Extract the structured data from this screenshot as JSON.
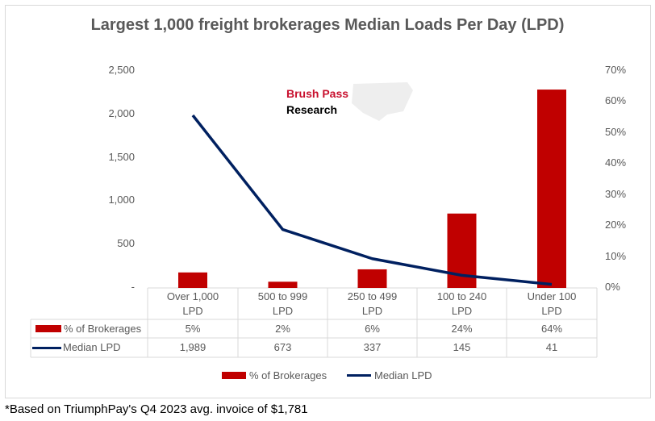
{
  "chart_data": {
    "type": "bar+line",
    "title": "Largest 1,000 freight brokerages Median Loads Per Day (LPD)",
    "categories": [
      "Over 1,000 LPD",
      "500 to 999 LPD",
      "250 to 499 LPD",
      "100 to 240 LPD",
      "Under 100 LPD"
    ],
    "category_lines": [
      [
        "Over 1,000",
        "LPD"
      ],
      [
        "500 to 999",
        "LPD"
      ],
      [
        "250 to 499",
        "LPD"
      ],
      [
        "100 to 240",
        "LPD"
      ],
      [
        "Under 100",
        "LPD"
      ]
    ],
    "series": [
      {
        "name": "% of Brokerages",
        "type": "bar",
        "axis": "right",
        "values": [
          5,
          2,
          6,
          24,
          64
        ],
        "labels": [
          "5%",
          "2%",
          "6%",
          "24%",
          "64%"
        ],
        "color": "#c00000"
      },
      {
        "name": "Median LPD",
        "type": "line",
        "axis": "left",
        "values": [
          1989,
          673,
          337,
          145,
          41
        ],
        "labels": [
          "1,989",
          "673",
          "337",
          "145",
          "41"
        ],
        "color": "#002060"
      }
    ],
    "left_axis": {
      "range": [
        0,
        2500
      ],
      "ticks": [
        "-",
        "500",
        "1,000",
        "1,500",
        "2,000",
        "2,500"
      ]
    },
    "right_axis": {
      "range": [
        0,
        70
      ],
      "ticks": [
        "0%",
        "10%",
        "20%",
        "30%",
        "40%",
        "50%",
        "60%",
        "70%"
      ]
    },
    "legend_position": "bottom",
    "grid": false
  },
  "logo": {
    "line1": "Brush Pass",
    "line2": "Research"
  },
  "footnote": "*Based on TriumphPay's Q4 2023 avg. invoice of $1,781"
}
